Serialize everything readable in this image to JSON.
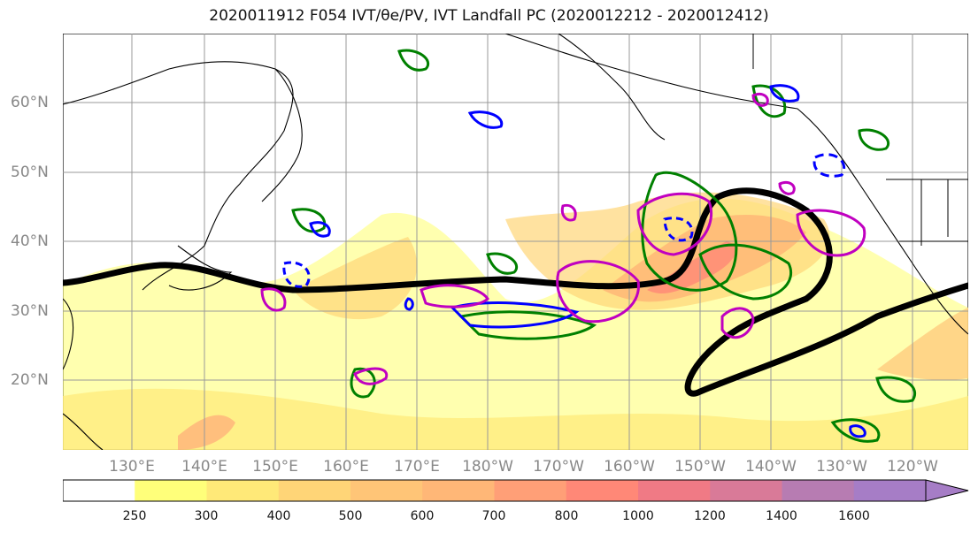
{
  "title": "2020011912 F054 IVT/θe/PV, IVT Landfall PC (2020012212 - 2020012412)",
  "map": {
    "lat_labels": [
      "60°N",
      "50°N",
      "40°N",
      "30°N",
      "20°N"
    ],
    "lon_labels": [
      "130°E",
      "140°E",
      "150°E",
      "160°E",
      "170°E",
      "180°W",
      "170°W",
      "160°W",
      "150°W",
      "140°W",
      "130°W",
      "120°W"
    ],
    "ivt_colors": [
      "#ffffff",
      "#ffff7a",
      "#ffe978",
      "#ffd577",
      "#ffc577",
      "#ffb777",
      "#ff9f77",
      "#ff8877",
      "#f07a85",
      "#d97a98",
      "#b77cb2",
      "#a67dc6"
    ],
    "contour_colors": {
      "pc": "#000000",
      "theta_e": "#008000",
      "pv_positive": "#0000ff",
      "pv_other": "#c000c0"
    }
  },
  "colorbar": {
    "ticks": [
      "250",
      "300",
      "400",
      "500",
      "600",
      "700",
      "800",
      "1000",
      "1200",
      "1400",
      "1600"
    ]
  }
}
